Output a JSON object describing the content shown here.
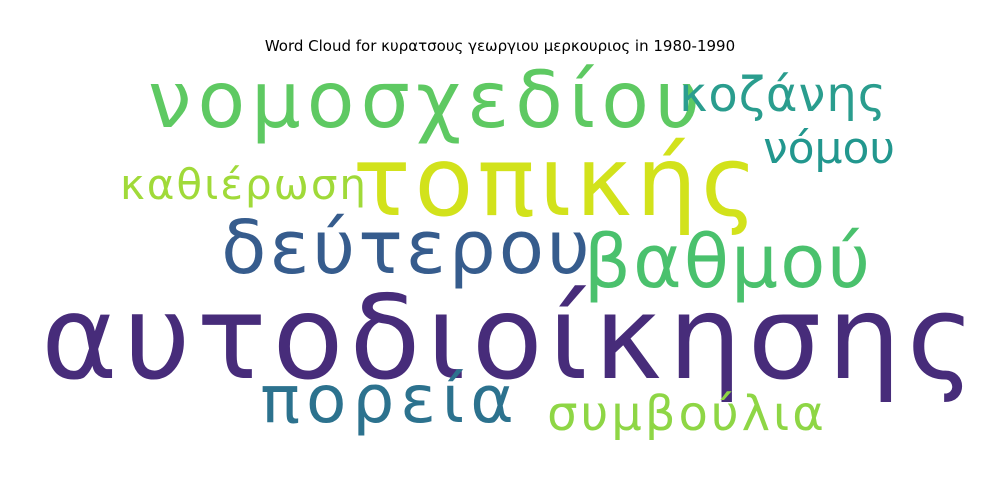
{
  "chart_data": {
    "type": "wordcloud",
    "title": "Word Cloud for κυρατσους γεωργιου μερκουριος in 1980-1990",
    "words": [
      {
        "text": "αυτοδιοίκησης",
        "weight": 1.0,
        "color": "#472c7a"
      },
      {
        "text": "τοπικής",
        "weight": 0.86,
        "color": "#d2e21b"
      },
      {
        "text": "νομοσχεδίου",
        "weight": 0.72,
        "color": "#5ec962"
      },
      {
        "text": "δεύτερου",
        "weight": 0.66,
        "color": "#365c8d"
      },
      {
        "text": "βαθμού",
        "weight": 0.66,
        "color": "#4ac16d"
      },
      {
        "text": "πορεία",
        "weight": 0.6,
        "color": "#2c728e"
      },
      {
        "text": "κοζάνης",
        "weight": 0.46,
        "color": "#2a9d8e"
      },
      {
        "text": "νόμου",
        "weight": 0.42,
        "color": "#22978e"
      },
      {
        "text": "καθιέρωση",
        "weight": 0.42,
        "color": "#a0da39"
      },
      {
        "text": "συμβούλια",
        "weight": 0.42,
        "color": "#8ed645"
      }
    ]
  }
}
